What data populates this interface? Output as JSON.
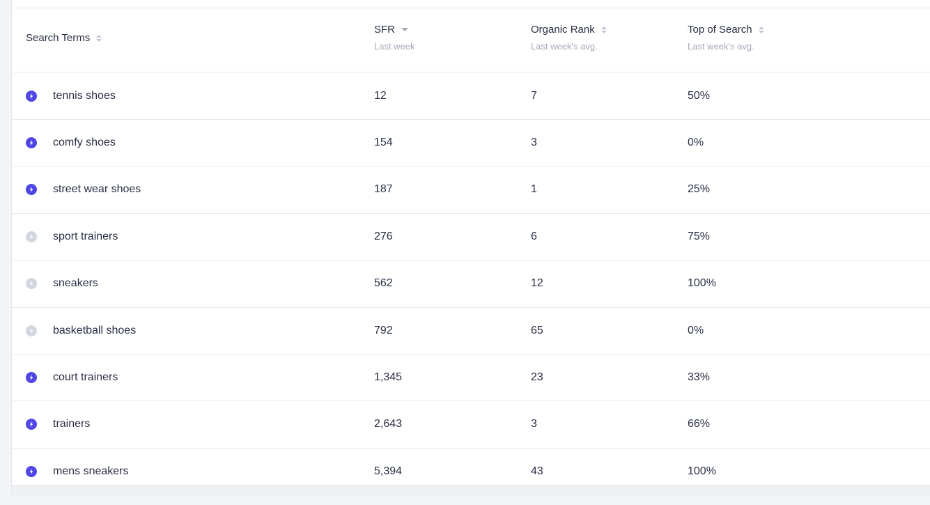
{
  "table": {
    "headers": {
      "term": {
        "label": "Search Terms",
        "subtitle": ""
      },
      "sfr": {
        "label": "SFR",
        "subtitle": "Last week"
      },
      "rank": {
        "label": "Organic Rank",
        "subtitle": "Last week's avg."
      },
      "top": {
        "label": "Top of Search",
        "subtitle": "Last week's avg."
      }
    },
    "rows": [
      {
        "term": "tennis shoes",
        "sfr": "12",
        "rank": "7",
        "top": "50%",
        "active": true
      },
      {
        "term": "comfy shoes",
        "sfr": "154",
        "rank": "3",
        "top": "0%",
        "active": true
      },
      {
        "term": "street wear shoes",
        "sfr": "187",
        "rank": "1",
        "top": "25%",
        "active": true
      },
      {
        "term": "sport trainers",
        "sfr": "276",
        "rank": "6",
        "top": "75%",
        "active": false
      },
      {
        "term": "sneakers",
        "sfr": "562",
        "rank": "12",
        "top": "100%",
        "active": false
      },
      {
        "term": "basketball shoes",
        "sfr": "792",
        "rank": "65",
        "top": "0%",
        "active": false
      },
      {
        "term": "court trainers",
        "sfr": "1,345",
        "rank": "23",
        "top": "33%",
        "active": true
      },
      {
        "term": "trainers",
        "sfr": "2,643",
        "rank": "3",
        "top": "66%",
        "active": true
      },
      {
        "term": "mens sneakers",
        "sfr": "5,394",
        "rank": "43",
        "top": "100%",
        "active": true
      }
    ]
  },
  "colors": {
    "active_icon": "#4f46e5",
    "inactive_icon": "#d3d6de"
  },
  "icons": {
    "row_status": "lightning-bolt-icon",
    "sort": "sort-arrows-icon",
    "sort_active": "sort-desc-icon"
  }
}
